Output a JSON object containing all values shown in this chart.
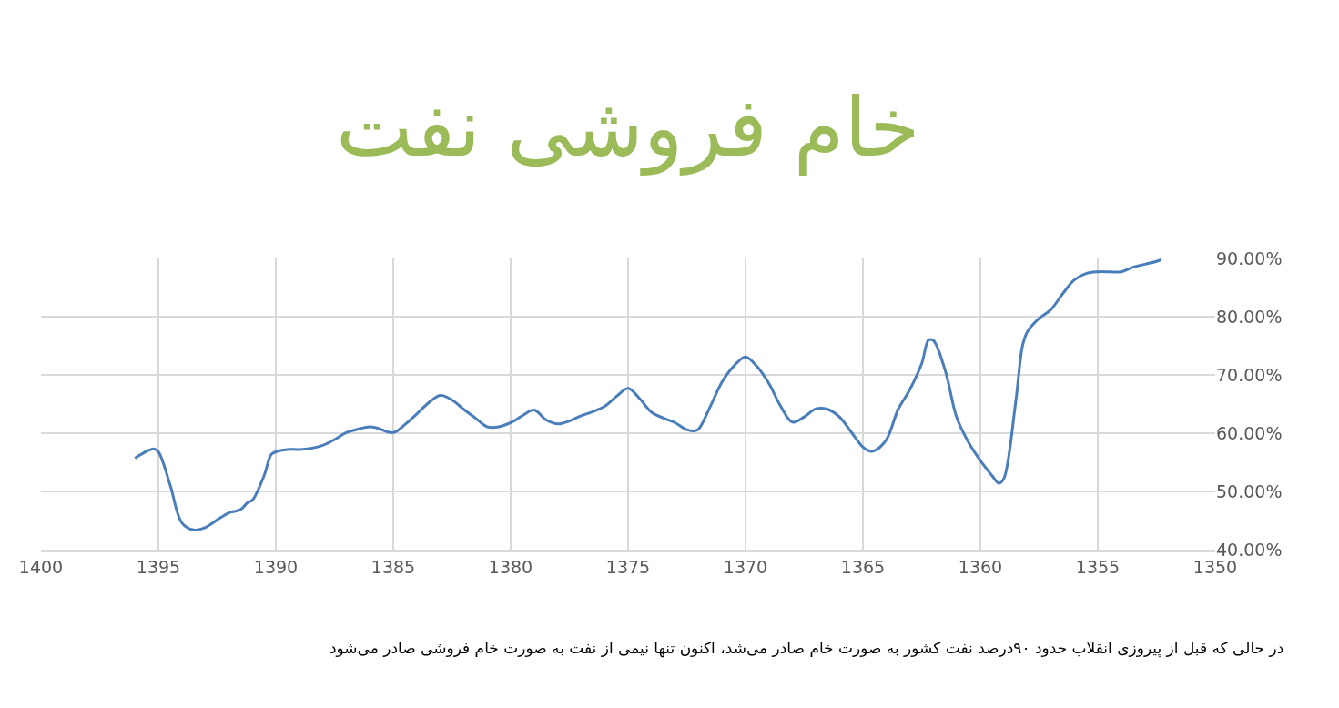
{
  "chart_data": {
    "type": "line",
    "title": "خام فروشی نفت",
    "annotations": [
      "در حالی که قبل از پیروزی انقلاب حدود ۹۰درصد نفت کشور به صورت خام صادر می‌شد، اکنون تنها نیمی از نفت به صورت خام فروشی صادر می‌شود"
    ],
    "x": [
      1396,
      1395.2,
      1395,
      1394.5,
      1394,
      1393.5,
      1393,
      1392.5,
      1392,
      1391.5,
      1391.2,
      1391,
      1390.5,
      1390.2,
      1390,
      1389.5,
      1389,
      1388.5,
      1388,
      1387.5,
      1387,
      1386.5,
      1386,
      1385.7,
      1385,
      1384.5,
      1384,
      1383.5,
      1383,
      1382.5,
      1382,
      1381.5,
      1381,
      1380.5,
      1380,
      1379.5,
      1379,
      1378.5,
      1378,
      1377.5,
      1377,
      1376.5,
      1376,
      1375.5,
      1375,
      1374.5,
      1374,
      1373.5,
      1373,
      1372.5,
      1372.2,
      1372,
      1371.5,
      1371,
      1370.5,
      1370,
      1369.5,
      1369,
      1368.5,
      1368,
      1367.5,
      1367,
      1366.5,
      1366,
      1365.5,
      1365,
      1364.7,
      1364.5,
      1364,
      1363.5,
      1363,
      1362.5,
      1362.2,
      1362,
      1361.5,
      1361,
      1360.5,
      1360,
      1359.5,
      1359.2,
      1359,
      1358.5,
      1358.2,
      1358,
      1357.5,
      1357,
      1356.5,
      1356,
      1355.5,
      1355,
      1354.5,
      1354,
      1353.5,
      1353,
      1352.5,
      1352.3
    ],
    "series": [
      {
        "color": "#4a7ebb",
        "values": [
          55.7,
          57.3,
          56.8,
          51.1,
          44.6,
          43.4,
          43.8,
          45.1,
          46.3,
          46.9,
          48.1,
          48.5,
          52.7,
          56.3,
          56.8,
          57.2,
          57.2,
          57.4,
          57.9,
          58.9,
          60.1,
          60.7,
          61.1,
          60.9,
          60.1,
          61.5,
          63.3,
          65.2,
          66.5,
          65.7,
          64.1,
          62.6,
          61.1,
          61.1,
          61.8,
          63.0,
          64.0,
          62.3,
          61.6,
          62.1,
          63.0,
          63.7,
          64.6,
          66.3,
          67.7,
          65.9,
          63.6,
          62.6,
          61.8,
          60.6,
          60.4,
          60.7,
          64.6,
          68.8,
          71.5,
          73.1,
          71.4,
          68.5,
          64.6,
          61.9,
          62.8,
          64.2,
          64.1,
          62.8,
          60.2,
          57.6,
          56.9,
          57.0,
          58.9,
          64.1,
          67.5,
          71.9,
          76.0,
          75.9,
          70.8,
          62.6,
          58.4,
          55.3,
          52.7,
          51.4,
          52.2,
          65.2,
          75.1,
          77.4,
          79.7,
          81.2,
          83.9,
          86.3,
          87.4,
          87.7,
          87.7,
          87.7,
          88.5,
          89.0,
          89.5,
          89.8
        ]
      }
    ],
    "xlim": [
      1400,
      1350
    ],
    "xticks": [
      1400,
      1395,
      1390,
      1385,
      1380,
      1375,
      1370,
      1365,
      1360,
      1355,
      1350
    ],
    "ylim": [
      40,
      90
    ],
    "yticks": [
      {
        "value": 40,
        "label": "40.00%"
      },
      {
        "value": 50,
        "label": "50.00%"
      },
      {
        "value": 60,
        "label": "60.00%"
      },
      {
        "value": 70,
        "label": "70.00%"
      },
      {
        "value": 80,
        "label": "80.00%"
      },
      {
        "value": 90,
        "label": "90.00%"
      }
    ],
    "grid": true,
    "marker": "none",
    "line_style": "solid"
  }
}
